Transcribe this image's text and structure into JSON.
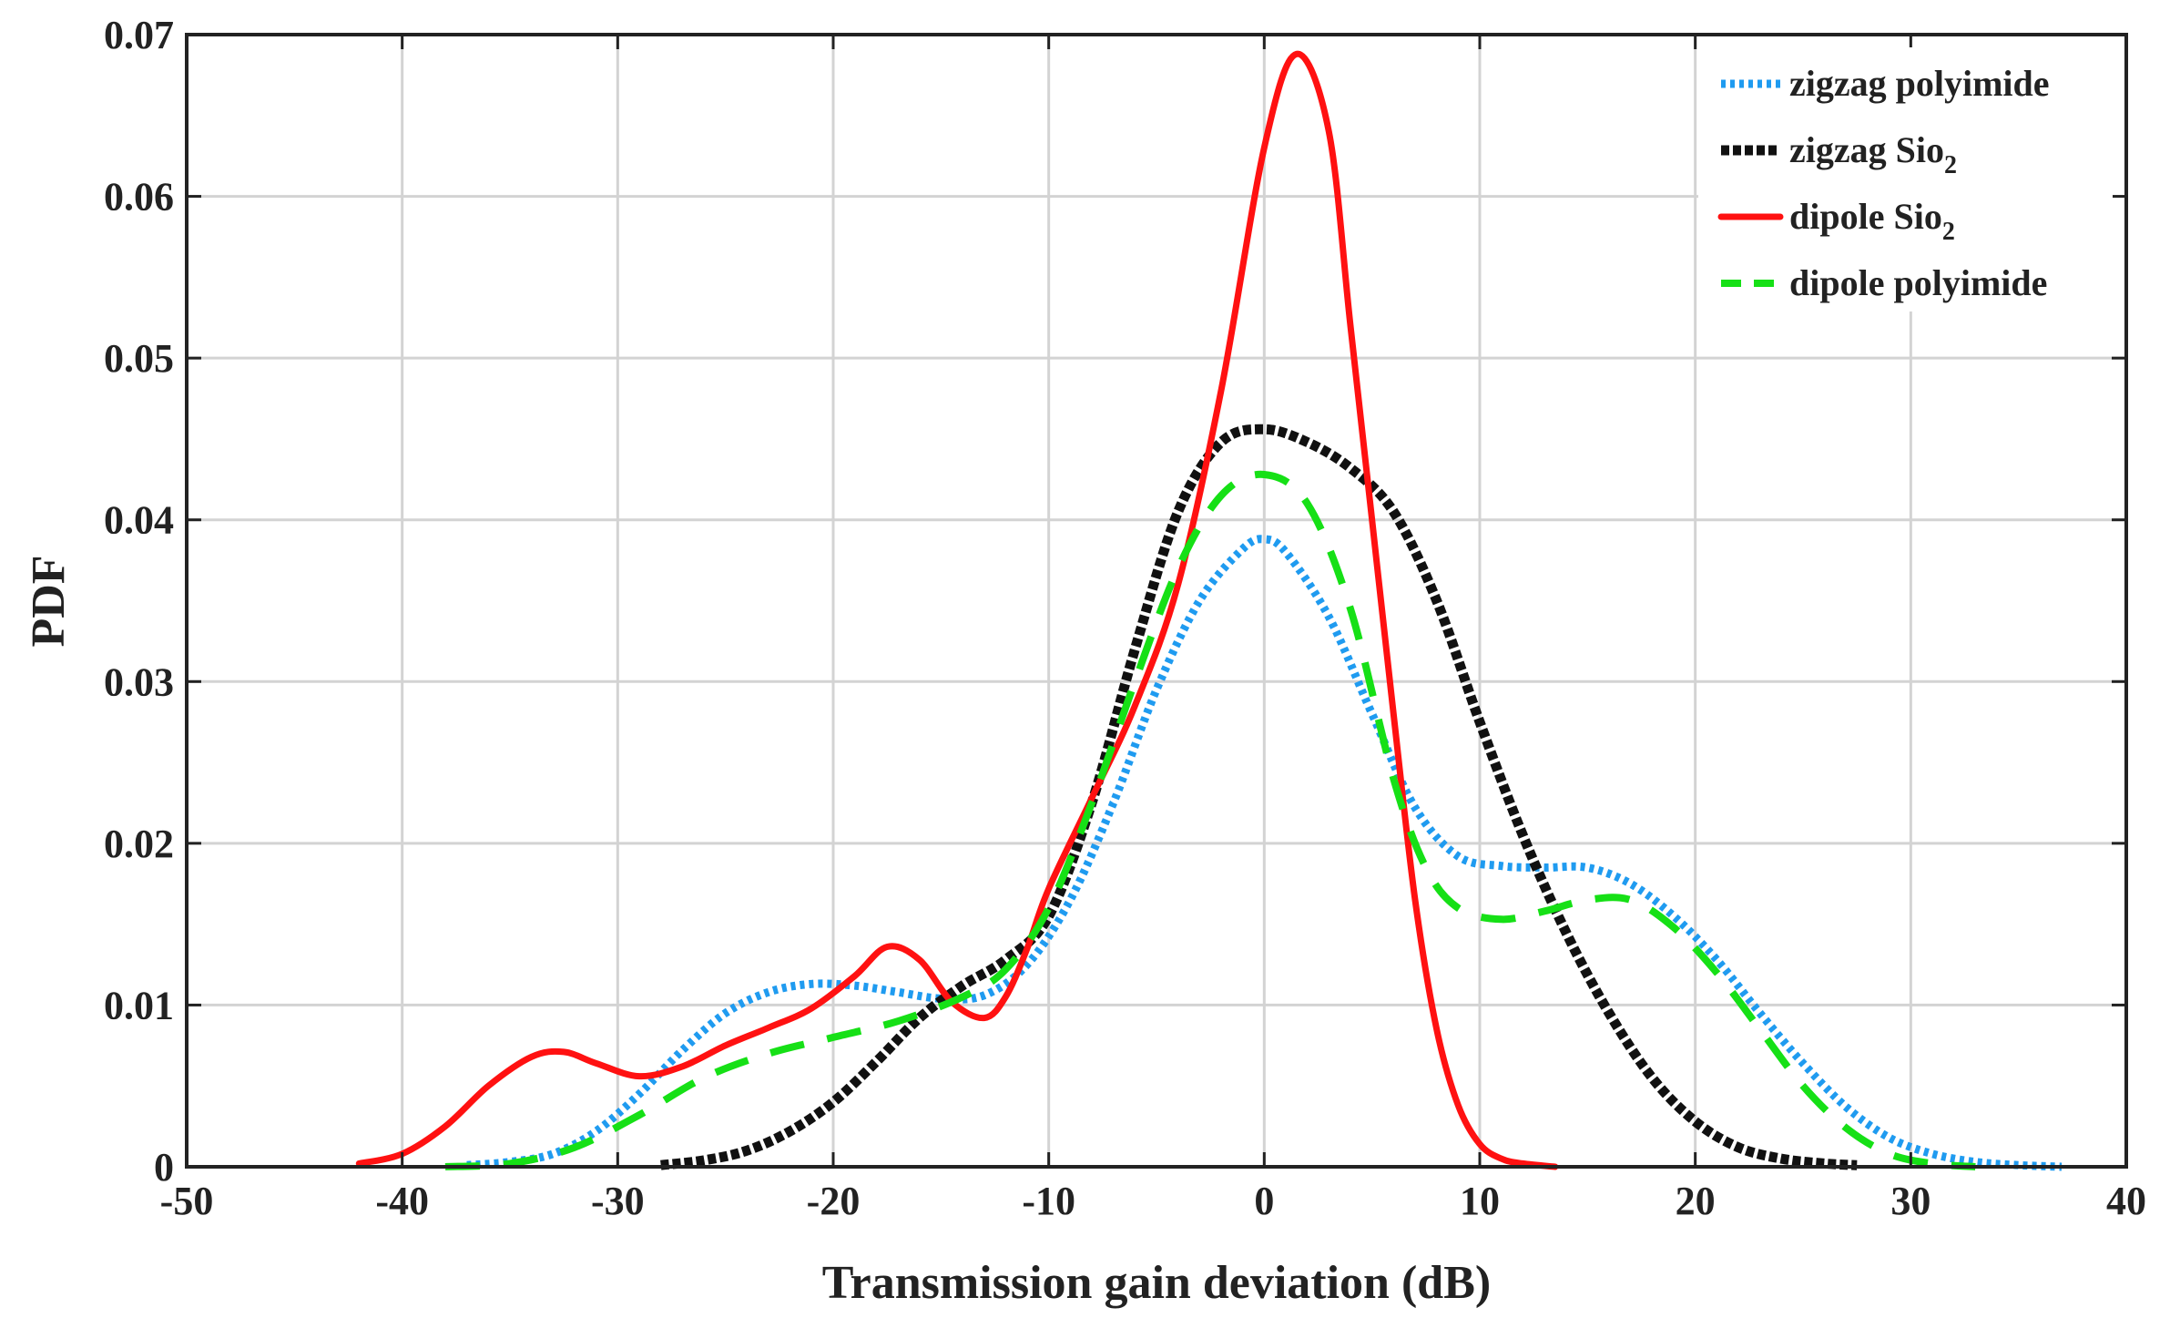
{
  "chart_data": {
    "type": "line",
    "title": "",
    "xlabel": "Transmission gain deviation (dB)",
    "ylabel": "PDF",
    "xlim": [
      -50,
      40
    ],
    "ylim": [
      0,
      0.07
    ],
    "xticks": [
      -50,
      -40,
      -30,
      -20,
      -10,
      0,
      10,
      20,
      30,
      40
    ],
    "yticks": [
      0,
      0.01,
      0.02,
      0.03,
      0.04,
      0.05,
      0.06,
      0.07
    ],
    "xtick_labels": [
      "-50",
      "-40",
      "-30",
      "-20",
      "-10",
      "0",
      "10",
      "20",
      "30",
      "40"
    ],
    "ytick_labels": [
      "0",
      "0.01",
      "0.02",
      "0.03",
      "0.04",
      "0.05",
      "0.06",
      "0.07"
    ],
    "grid": true,
    "legend_position": "top-right",
    "series": [
      {
        "name": "zigzag polyimide",
        "legend_main": "zigzag polyimide",
        "legend_sub": "",
        "color": "#1f9bf0",
        "style": "dotted",
        "x": [
          -37,
          -35,
          -33,
          -31,
          -29,
          -27,
          -25,
          -23,
          -21,
          -19,
          -17,
          -15,
          -13,
          -11,
          -9,
          -7,
          -5,
          -3,
          -1,
          0,
          1,
          3,
          5,
          7,
          9,
          11,
          13,
          15,
          17,
          19,
          21,
          23,
          25,
          27,
          29,
          31,
          33,
          35,
          37
        ],
        "y": [
          0.0001,
          0.0003,
          0.0008,
          0.0022,
          0.0045,
          0.0072,
          0.0095,
          0.0108,
          0.0113,
          0.0112,
          0.0108,
          0.0104,
          0.0106,
          0.0125,
          0.0165,
          0.0225,
          0.0295,
          0.035,
          0.0382,
          0.0388,
          0.038,
          0.034,
          0.028,
          0.0222,
          0.0192,
          0.0186,
          0.0185,
          0.0185,
          0.0175,
          0.0155,
          0.0128,
          0.0095,
          0.0064,
          0.0037,
          0.0018,
          0.0008,
          0.0003,
          0.0001,
          0.0
        ]
      },
      {
        "name": "zigzag Sio2",
        "legend_main": "zigzag Sio",
        "legend_sub": "2",
        "color": "#111111",
        "style": "dash-marker",
        "x": [
          -28,
          -26,
          -24,
          -22,
          -20,
          -18,
          -16,
          -14,
          -12,
          -10,
          -8,
          -6,
          -4,
          -2,
          0,
          2,
          4,
          6,
          8,
          10,
          12,
          14,
          16,
          18,
          20,
          22,
          24,
          26,
          27.5
        ],
        "y": [
          0.0001,
          0.0004,
          0.001,
          0.0022,
          0.004,
          0.0065,
          0.0092,
          0.0112,
          0.0128,
          0.0155,
          0.0225,
          0.032,
          0.0405,
          0.0448,
          0.0456,
          0.0448,
          0.0432,
          0.0405,
          0.035,
          0.0275,
          0.0205,
          0.0145,
          0.0095,
          0.0055,
          0.0028,
          0.0012,
          0.0005,
          0.0002,
          0.0001
        ]
      },
      {
        "name": "dipole Sio2",
        "legend_main": "dipole Sio",
        "legend_sub": "2",
        "color": "#ff1111",
        "style": "solid",
        "x": [
          -42,
          -40,
          -38,
          -36,
          -34,
          -32.5,
          -31,
          -29,
          -27,
          -25,
          -23,
          -21,
          -19,
          -17.5,
          -16,
          -14.5,
          -13,
          -12,
          -11,
          -10,
          -8,
          -6,
          -4,
          -2,
          0,
          1.5,
          3,
          4,
          5,
          6,
          7,
          8,
          9,
          10,
          11,
          12,
          13.5
        ],
        "y": [
          0.0002,
          0.0008,
          0.0025,
          0.005,
          0.0068,
          0.0071,
          0.0064,
          0.0056,
          0.0062,
          0.0075,
          0.0086,
          0.0098,
          0.0118,
          0.0136,
          0.0128,
          0.0102,
          0.0092,
          0.0105,
          0.0135,
          0.0172,
          0.0228,
          0.0285,
          0.036,
          0.048,
          0.063,
          0.0688,
          0.064,
          0.052,
          0.04,
          0.028,
          0.0165,
          0.0085,
          0.0038,
          0.0014,
          0.0005,
          0.0002,
          0.0
        ]
      },
      {
        "name": "dipole polyimide",
        "legend_main": "dipole polyimide",
        "legend_sub": "",
        "color": "#16e016",
        "style": "dashed",
        "x": [
          -38,
          -35,
          -32,
          -29,
          -26,
          -23,
          -20,
          -17,
          -14,
          -12,
          -10,
          -8,
          -6,
          -4,
          -2,
          0,
          2,
          4,
          6,
          7.5,
          9,
          11,
          13,
          15,
          17,
          19,
          21,
          23,
          25,
          27,
          29,
          31,
          33
        ],
        "y": [
          0.0,
          0.0002,
          0.0012,
          0.0032,
          0.0055,
          0.007,
          0.008,
          0.009,
          0.0105,
          0.0122,
          0.016,
          0.0225,
          0.03,
          0.037,
          0.0415,
          0.0428,
          0.041,
          0.0345,
          0.024,
          0.0185,
          0.016,
          0.0153,
          0.0158,
          0.0165,
          0.0165,
          0.0148,
          0.012,
          0.0085,
          0.005,
          0.0024,
          0.0008,
          0.0002,
          0.0
        ]
      }
    ]
  }
}
